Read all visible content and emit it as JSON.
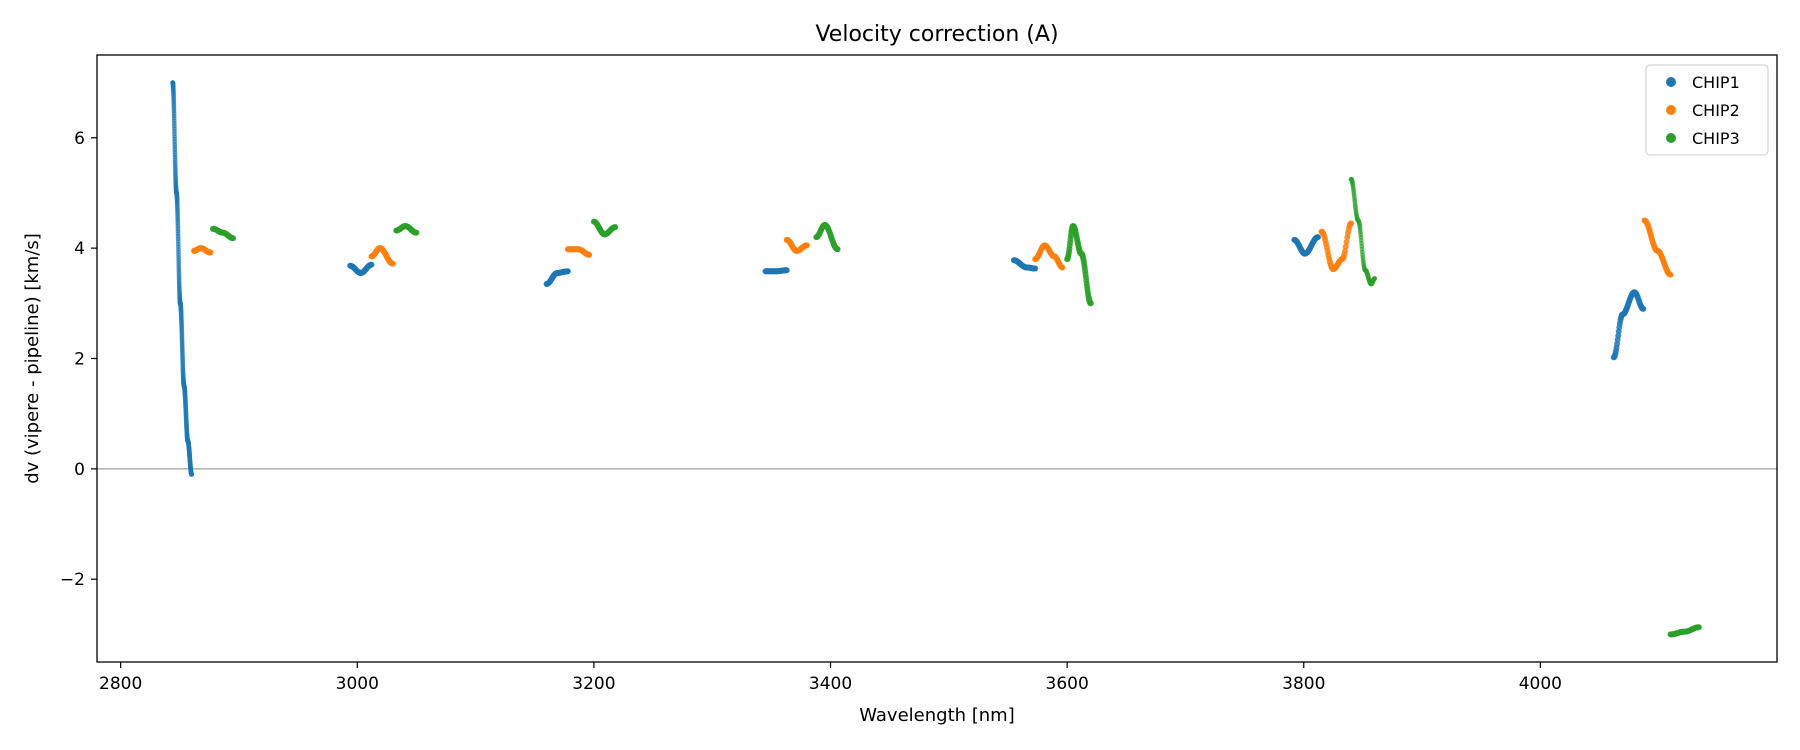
{
  "chart_data": {
    "type": "scatter",
    "title": "Velocity correction (A)",
    "xlabel": "Wavelength [nm]",
    "ylabel": "dv (vipere - pipeline) [km/s]",
    "xlim": [
      2780,
      4200
    ],
    "ylim": [
      -3.5,
      7.5
    ],
    "xticks": [
      2800,
      3000,
      3200,
      3400,
      3600,
      3800,
      4000
    ],
    "yticks": [
      -2,
      0,
      2,
      4,
      6
    ],
    "ytick_labels": [
      "−2",
      "0",
      "2",
      "4",
      "6"
    ],
    "hline": 0,
    "grid": false,
    "legend_position": "top-right",
    "series": [
      {
        "name": "CHIP1",
        "color": "#1f77b4",
        "segments": [
          {
            "x0": 2844,
            "x1": 2860,
            "points": [
              [
                0,
                7.0
              ],
              [
                0.2,
                5.0
              ],
              [
                0.4,
                3.0
              ],
              [
                0.6,
                1.5
              ],
              [
                0.8,
                0.5
              ],
              [
                1.0,
                -0.1
              ]
            ]
          },
          {
            "x0": 2994,
            "x1": 3012,
            "points": [
              [
                0,
                3.68
              ],
              [
                0.5,
                3.55
              ],
              [
                1.0,
                3.7
              ]
            ]
          },
          {
            "x0": 3160,
            "x1": 3178,
            "points": [
              [
                0,
                3.35
              ],
              [
                0.5,
                3.55
              ],
              [
                1.0,
                3.58
              ]
            ]
          },
          {
            "x0": 3345,
            "x1": 3363,
            "points": [
              [
                0,
                3.58
              ],
              [
                0.5,
                3.58
              ],
              [
                1.0,
                3.6
              ]
            ]
          },
          {
            "x0": 3555,
            "x1": 3573,
            "points": [
              [
                0,
                3.78
              ],
              [
                0.6,
                3.65
              ],
              [
                1.0,
                3.63
              ]
            ]
          },
          {
            "x0": 3792,
            "x1": 3812,
            "points": [
              [
                0,
                4.15
              ],
              [
                0.45,
                3.9
              ],
              [
                1.0,
                4.2
              ]
            ]
          },
          {
            "x0": 4062,
            "x1": 4087,
            "points": [
              [
                0,
                2.02
              ],
              [
                0.3,
                2.8
              ],
              [
                0.7,
                3.2
              ],
              [
                1.0,
                2.9
              ]
            ]
          }
        ]
      },
      {
        "name": "CHIP2",
        "color": "#ff7f0e",
        "segments": [
          {
            "x0": 2862,
            "x1": 2876,
            "points": [
              [
                0,
                3.95
              ],
              [
                0.4,
                4.0
              ],
              [
                1.0,
                3.92
              ]
            ]
          },
          {
            "x0": 3012,
            "x1": 3030,
            "points": [
              [
                0,
                3.85
              ],
              [
                0.4,
                4.0
              ],
              [
                1.0,
                3.72
              ]
            ]
          },
          {
            "x0": 3178,
            "x1": 3196,
            "points": [
              [
                0,
                3.98
              ],
              [
                0.5,
                3.98
              ],
              [
                1.0,
                3.88
              ]
            ]
          },
          {
            "x0": 3363,
            "x1": 3380,
            "points": [
              [
                0,
                4.15
              ],
              [
                0.5,
                3.95
              ],
              [
                1.0,
                4.05
              ]
            ]
          },
          {
            "x0": 3573,
            "x1": 3596,
            "points": [
              [
                0,
                3.8
              ],
              [
                0.35,
                4.05
              ],
              [
                0.7,
                3.85
              ],
              [
                1.0,
                3.65
              ]
            ]
          },
          {
            "x0": 3815,
            "x1": 3840,
            "points": [
              [
                0,
                4.3
              ],
              [
                0.4,
                3.62
              ],
              [
                0.7,
                3.8
              ],
              [
                1.0,
                4.45
              ]
            ]
          },
          {
            "x0": 4088,
            "x1": 4110,
            "points": [
              [
                0,
                4.5
              ],
              [
                0.5,
                3.95
              ],
              [
                1.0,
                3.52
              ]
            ]
          }
        ]
      },
      {
        "name": "CHIP3",
        "color": "#2ca02c",
        "segments": [
          {
            "x0": 2878,
            "x1": 2895,
            "points": [
              [
                0,
                4.35
              ],
              [
                0.5,
                4.28
              ],
              [
                1.0,
                4.18
              ]
            ]
          },
          {
            "x0": 3033,
            "x1": 3050,
            "points": [
              [
                0,
                4.32
              ],
              [
                0.45,
                4.4
              ],
              [
                1.0,
                4.28
              ]
            ]
          },
          {
            "x0": 3200,
            "x1": 3218,
            "points": [
              [
                0,
                4.48
              ],
              [
                0.5,
                4.25
              ],
              [
                1.0,
                4.38
              ]
            ]
          },
          {
            "x0": 3388,
            "x1": 3406,
            "points": [
              [
                0,
                4.2
              ],
              [
                0.4,
                4.42
              ],
              [
                1.0,
                3.98
              ]
            ]
          },
          {
            "x0": 3600,
            "x1": 3620,
            "points": [
              [
                0,
                3.8
              ],
              [
                0.25,
                4.4
              ],
              [
                0.6,
                3.9
              ],
              [
                1.0,
                3.0
              ]
            ]
          },
          {
            "x0": 3840,
            "x1": 3860,
            "points": [
              [
                0,
                5.25
              ],
              [
                0.3,
                4.5
              ],
              [
                0.6,
                3.6
              ],
              [
                0.85,
                3.35
              ],
              [
                1.0,
                3.45
              ]
            ]
          },
          {
            "x0": 4110,
            "x1": 4134,
            "points": [
              [
                0,
                -3.0
              ],
              [
                0.5,
                -2.95
              ],
              [
                1.0,
                -2.87
              ]
            ]
          }
        ]
      }
    ]
  }
}
